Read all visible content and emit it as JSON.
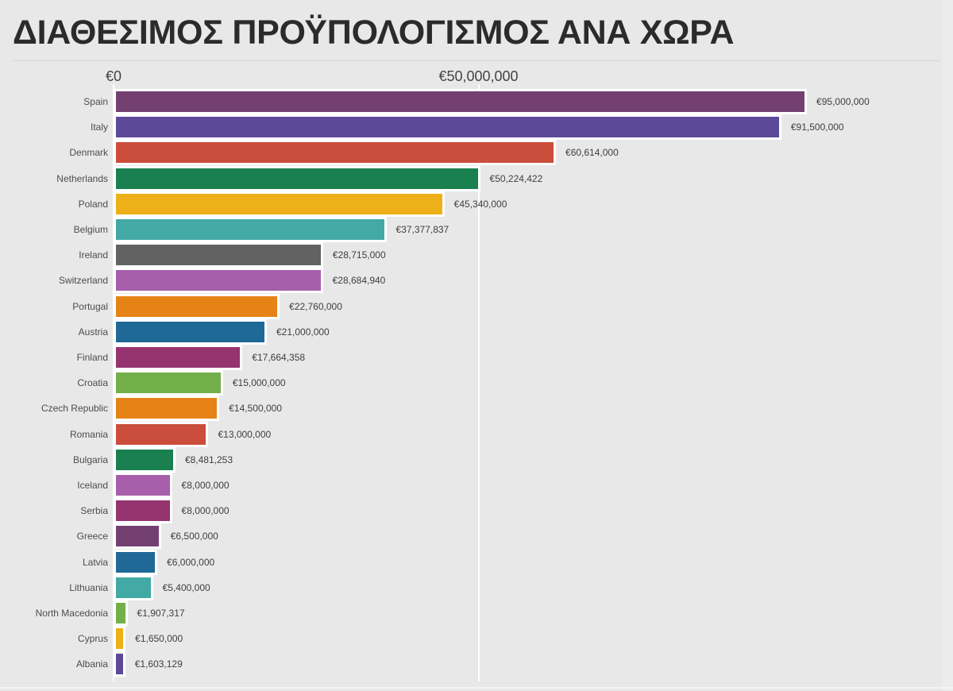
{
  "background_color": "#e9e8e8",
  "chart_data": {
    "type": "bar",
    "orientation": "horizontal",
    "title": "ΔΙΑΘΕΣΙΜΟΣ ΠΡΟΫΠΟΛΟΓΙΣΜΟΣ ΑΝΑ ΧΩΡΑ",
    "xlabel": "",
    "ylabel": "",
    "grid": "vertical gridline at each x tick, white",
    "legend": "none",
    "x_axis": {
      "position": "top",
      "range": [
        0,
        115000000
      ],
      "ticks": [
        {
          "value": 0,
          "label": "€0"
        },
        {
          "value": 50000000,
          "label": "€50,000,000"
        }
      ]
    },
    "categories": [
      "Spain",
      "Italy",
      "Denmark",
      "Netherlands",
      "Poland",
      "Belgium",
      "Ireland",
      "Switzerland",
      "Portugal",
      "Austria",
      "Finland",
      "Croatia",
      "Czech Republic",
      "Romania",
      "Bulgaria",
      "Iceland",
      "Serbia",
      "Greece",
      "Latvia",
      "Lithuania",
      "North Macedonia",
      "Cyprus",
      "Albania"
    ],
    "values": [
      95000000,
      91500000,
      60614000,
      50224422,
      45340000,
      37377837,
      28715000,
      28684940,
      22760000,
      21000000,
      17664358,
      15000000,
      14500000,
      13000000,
      8481253,
      8000000,
      8000000,
      6500000,
      6000000,
      5400000,
      1907317,
      1650000,
      1603129
    ],
    "value_labels": [
      "€95,000,000",
      "€91,500,000",
      "€60,614,000",
      "€50,224,422",
      "€45,340,000",
      "€37,377,837",
      "€28,715,000",
      "€28,684,940",
      "€22,760,000",
      "€21,000,000",
      "€17,664,358",
      "€15,000,000",
      "€14,500,000",
      "€13,000,000",
      "€8,481,253",
      "€8,000,000",
      "€8,000,000",
      "€6,500,000",
      "€6,000,000",
      "€5,400,000",
      "€1,907,317",
      "€1,650,000",
      "€1,603,129"
    ],
    "bar_colors": [
      "#744071",
      "#5c4998",
      "#cb4d3c",
      "#1a8050",
      "#edb018",
      "#42a9a5",
      "#626262",
      "#a75fab",
      "#e68316",
      "#206896",
      "#963470",
      "#73b04a",
      "#e68316",
      "#cb4d3c",
      "#1a8050",
      "#a75fab",
      "#963470",
      "#744071",
      "#206896",
      "#42a9a5",
      "#73b04a",
      "#edb018",
      "#5c4998"
    ],
    "bar_stroke_color": "#ffffff"
  }
}
